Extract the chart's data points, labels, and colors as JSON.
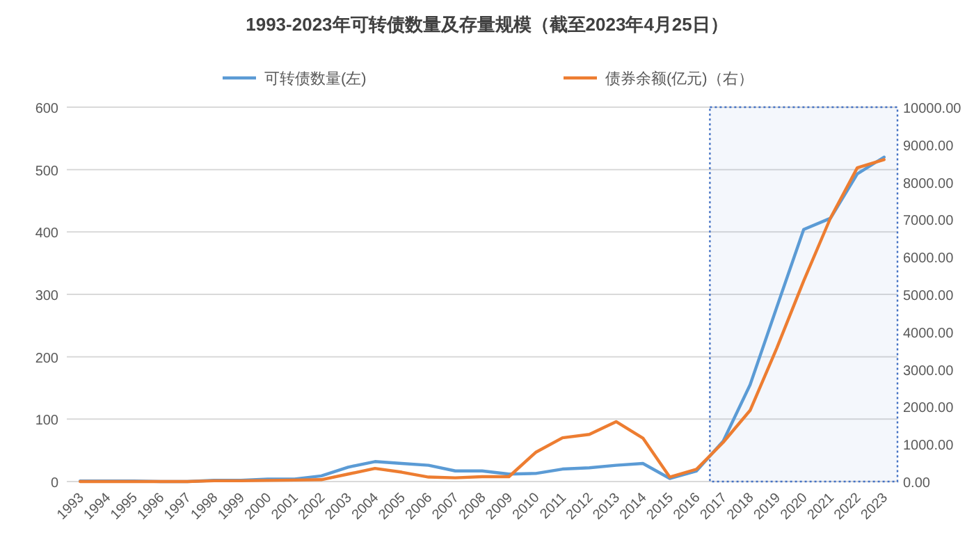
{
  "chart_data": {
    "type": "line",
    "title": "1993-2023年可转债数量及存量规模（截至2023年4月25日）",
    "categories": [
      "1993",
      "1994",
      "1995",
      "1996",
      "1997",
      "1998",
      "1999",
      "2000",
      "2001",
      "2002",
      "2003",
      "2004",
      "2005",
      "2006",
      "2007",
      "2008",
      "2009",
      "2010",
      "2011",
      "2012",
      "2013",
      "2014",
      "2015",
      "2016",
      "2017",
      "2018",
      "2019",
      "2020",
      "2021",
      "2022",
      "2023"
    ],
    "series": [
      {
        "name": "可转债数量(左)",
        "color": "#5b9bd5",
        "values": [
          1,
          1,
          1,
          0,
          0,
          2,
          2,
          4,
          4,
          9,
          23,
          32,
          29,
          26,
          17,
          17,
          12,
          13,
          20,
          22,
          26,
          29,
          5,
          17,
          65,
          155,
          280,
          404,
          422,
          493,
          520
        ]
      },
      {
        "name": "债券余额(亿元)（右）",
        "color": "#ed7d31",
        "axis": "y2",
        "values": [
          0,
          0,
          0,
          0,
          0,
          20,
          20,
          30,
          40,
          50,
          200,
          350,
          250,
          120,
          100,
          130,
          130,
          780,
          1170,
          1260,
          1600,
          1160,
          120,
          330,
          1050,
          1900,
          3570,
          5360,
          7040,
          8380,
          8600
        ]
      }
    ],
    "ylim": [
      0,
      600
    ],
    "yticks": [
      0,
      100,
      200,
      300,
      400,
      500,
      600
    ],
    "y2lim": [
      0,
      10000
    ],
    "y2ticks": [
      {
        "value": 0,
        "label": "0.00"
      },
      {
        "value": 1000,
        "label": "1000.00"
      },
      {
        "value": 2000,
        "label": "2000.00"
      },
      {
        "value": 3000,
        "label": "3000.00"
      },
      {
        "value": 4000,
        "label": "4000.00"
      },
      {
        "value": 5000,
        "label": "5000.00"
      },
      {
        "value": 6000,
        "label": "6000.00"
      },
      {
        "value": 7000,
        "label": "7000.00"
      },
      {
        "value": 8000,
        "label": "8000.00"
      },
      {
        "value": 9000,
        "label": "9000.00"
      },
      {
        "value": 10000,
        "label": "10000.00"
      }
    ],
    "bands": [
      {
        "axis": "x",
        "from": "2017",
        "to": "2023",
        "color": "#4472c4"
      }
    ],
    "grid": "y",
    "legend": "top",
    "marker": "none",
    "line_style": "solid"
  }
}
